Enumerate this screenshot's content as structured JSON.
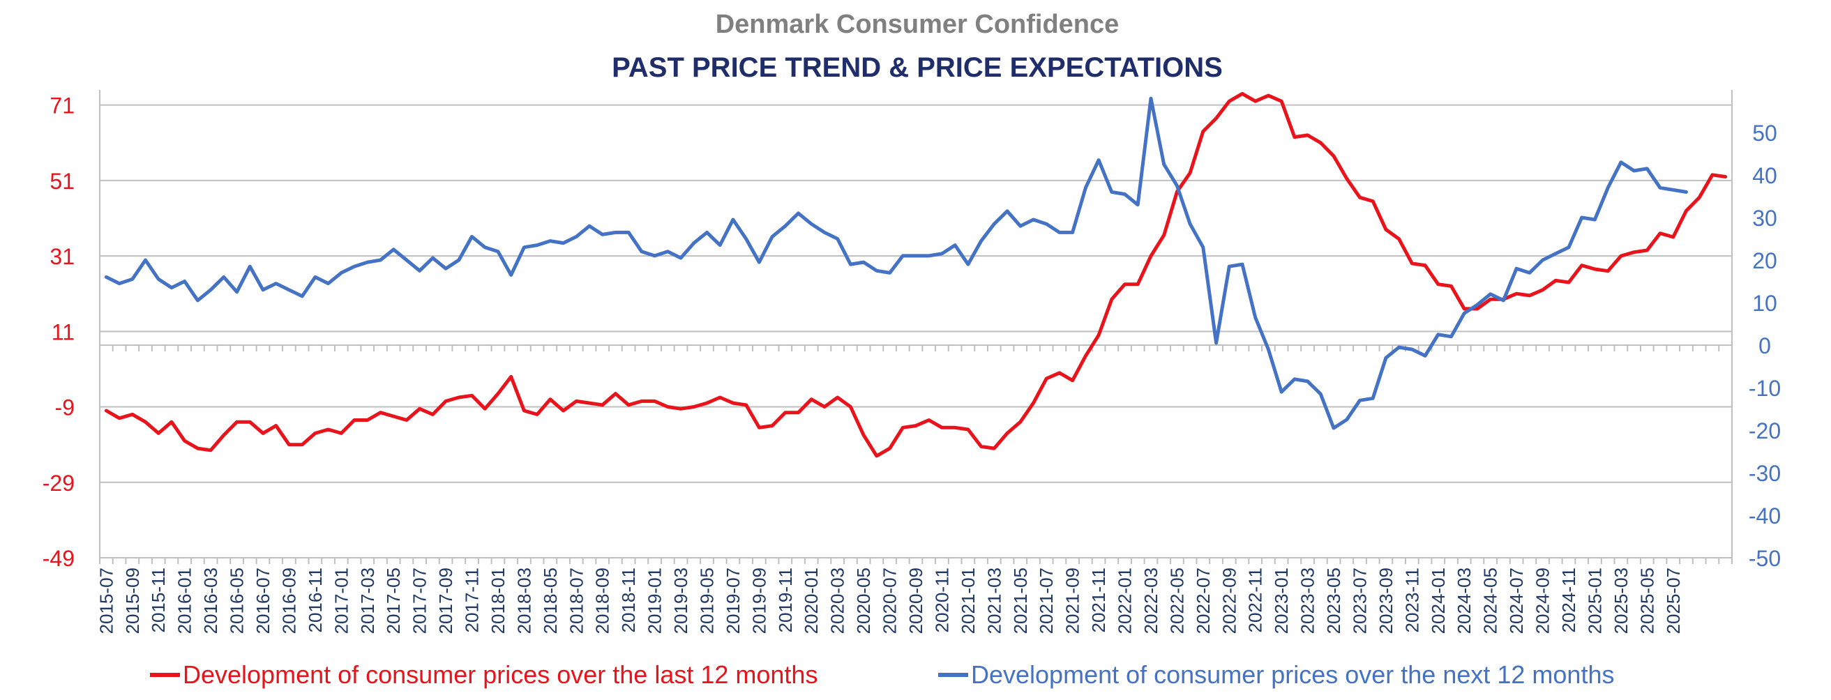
{
  "chart_data": {
    "type": "line",
    "title": "Denmark Consumer Confidence",
    "subtitle": "PAST PRICE TREND  & PRICE EXPECTATIONS",
    "colors": {
      "title": "#808080",
      "subtitle": "#1f2d6b",
      "left_axis_text": "#e8131b",
      "right_axis_text": "#4472c4",
      "x_axis_text": "#1f3864",
      "grid": "#bfbfbf",
      "zero_line": "#bfbfbf"
    },
    "grid": true,
    "legend_position": "bottom",
    "y_left": {
      "ylim": [
        -49,
        75
      ],
      "ticks": [
        71,
        51,
        31,
        11,
        -9,
        -29,
        -49
      ]
    },
    "y_right": {
      "ylim": [
        -50,
        60
      ],
      "ticks": [
        50,
        40,
        30,
        20,
        10,
        0,
        -10,
        -20,
        -30,
        -40,
        -50
      ]
    },
    "x_tick_labels": [
      "2015-07",
      "2015-09",
      "2015-11",
      "2016-01",
      "2016-03",
      "2016-05",
      "2016-07",
      "2016-09",
      "2016-11",
      "2017-01",
      "2017-03",
      "2017-05",
      "2017-07",
      "2017-09",
      "2017-11",
      "2018-01",
      "2018-03",
      "2018-05",
      "2018-07",
      "2018-09",
      "2018-11",
      "2019-01",
      "2019-03",
      "2019-05",
      "2019-07",
      "2019-09",
      "2019-11",
      "2020-01",
      "2020-03",
      "2020-05",
      "2020-07",
      "2020-09",
      "2020-11",
      "2021-01",
      "2021-03",
      "2021-05",
      "2021-07",
      "2021-09",
      "2021-11",
      "2022-01",
      "2022-03",
      "2022-05",
      "2022-07",
      "2022-09",
      "2022-11",
      "2023-01",
      "2023-03",
      "2023-05",
      "2023-07",
      "2023-09",
      "2023-11",
      "2024-01",
      "2024-03",
      "2024-05",
      "2024-07",
      "2024-09",
      "2024-11",
      "2025-01",
      "2025-03",
      "2025-05",
      "2025-07"
    ],
    "series": [
      {
        "name": "Development of consumer prices over the last 12 months",
        "color": "#e8131b",
        "axis": "left",
        "start": "2015-07",
        "values": [
          -10,
          -12,
          -11,
          -13,
          -16,
          -13,
          -18,
          -20,
          -20.5,
          -16.5,
          -13,
          -13,
          -16,
          -14,
          -19,
          -19,
          -16,
          -15,
          -16,
          -12.5,
          -12.5,
          -10.5,
          -11.5,
          -12.5,
          -9.5,
          -11,
          -7.5,
          -6.5,
          -6,
          -9.5,
          -5.5,
          -1,
          -10,
          -11,
          -7,
          -10,
          -7.5,
          -8,
          -8.5,
          -5.5,
          -8.5,
          -7.5,
          -7.5,
          -9,
          -9.5,
          -9,
          -8,
          -6.5,
          -8,
          -8.5,
          -14.5,
          -14,
          -10.5,
          -10.5,
          -7,
          -9,
          -6.5,
          -9,
          -16.5,
          -22,
          -20,
          -14.5,
          -14,
          -12.5,
          -14.5,
          -14.5,
          -15,
          -19.5,
          -20,
          -16,
          -13,
          -8,
          -1.5,
          0,
          -2,
          4.5,
          10,
          19.5,
          23.5,
          23.5,
          31,
          36.5,
          48,
          53,
          64,
          67.5,
          72,
          74,
          72,
          73.5,
          72,
          62.5,
          63,
          61,
          57.5,
          51.5,
          46.5,
          45.5,
          38,
          35.5,
          29,
          28.5,
          23.5,
          23,
          17,
          17,
          19.5,
          19.5,
          21,
          20.5,
          22,
          24.5,
          24,
          28.5,
          27.5,
          27,
          31,
          32,
          32.5,
          37,
          36,
          43,
          46.5,
          52.5,
          52
        ]
      },
      {
        "name": "Development of consumer prices over the next 12 months",
        "color": "#4472c4",
        "axis": "right",
        "start": "2015-07",
        "values": [
          16,
          14.5,
          15.5,
          20,
          15.5,
          13.5,
          15,
          10.5,
          13,
          16,
          12.5,
          18.5,
          13,
          14.5,
          13,
          11.5,
          16,
          14.5,
          17,
          18.5,
          19.5,
          20,
          22.5,
          20,
          17.5,
          20.5,
          18,
          20,
          25.5,
          23,
          22,
          16.5,
          23,
          23.5,
          24.5,
          24,
          25.5,
          28,
          26,
          26.5,
          26.5,
          22,
          21,
          22,
          20.5,
          24,
          26.5,
          23.5,
          29.5,
          25,
          19.5,
          25.5,
          28,
          31,
          28.5,
          26.5,
          25,
          19,
          19.5,
          17.5,
          17,
          21,
          21,
          21,
          21.5,
          23.5,
          19,
          24.5,
          28.5,
          31.5,
          28,
          29.5,
          28.5,
          26.5,
          26.5,
          37,
          43.5,
          36,
          35.5,
          33,
          58,
          42.5,
          37.5,
          28.5,
          23,
          0.5,
          18.5,
          19,
          6.5,
          -1,
          -11,
          -8,
          -8.5,
          -11.5,
          -19.5,
          -17.5,
          -13,
          -12.5,
          -3,
          -0.5,
          -1,
          -2.5,
          2.5,
          2,
          7.5,
          9.5,
          12,
          10.5,
          18,
          17,
          20,
          21.5,
          23,
          30,
          29.5,
          37,
          43,
          41,
          41.5,
          37,
          36.5,
          36
        ]
      }
    ]
  }
}
